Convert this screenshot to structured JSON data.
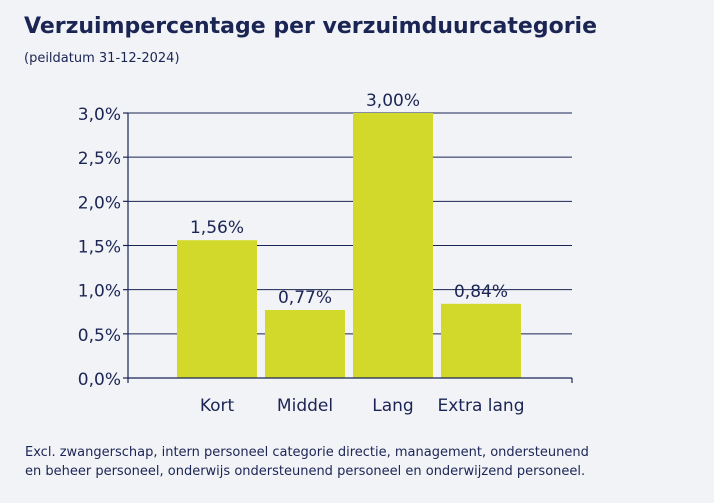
{
  "header": {
    "title": "Verzuimpercentage per verzuimduurcategorie",
    "subtitle": "(peildatum 31-12-2024)"
  },
  "footnote": {
    "line1": "Excl. zwangerschap, intern personeel categorie directie, management, ondersteunend",
    "line2": "en beheer personeel, onderwijs ondersteunend personeel en onderwijzend personeel."
  },
  "colors": {
    "bar": "#d2d92b",
    "text": "#1b2554",
    "gridline": "#1b2554",
    "background": "#f2f3f7"
  },
  "chart_data": {
    "type": "bar",
    "title": "Verzuimpercentage per verzuimduurcategorie",
    "subtitle": "(peildatum 31-12-2024)",
    "xlabel": "",
    "ylabel": "",
    "categories": [
      "Kort",
      "Middel",
      "Lang",
      "Extra lang"
    ],
    "values": [
      1.56,
      0.77,
      3.0,
      0.84
    ],
    "data_labels": [
      "1,56%",
      "0,77%",
      "3,00%",
      "0,84%"
    ],
    "ylim": [
      0,
      3.0
    ],
    "yticks": [
      0,
      0.5,
      1.0,
      1.5,
      2.0,
      2.5,
      3.0
    ],
    "ytick_labels": [
      "0,0%",
      "0,5%",
      "1,0%",
      "1,5%",
      "2,0%",
      "2,5%",
      "3,0%"
    ],
    "grid": true,
    "legend": "none"
  }
}
